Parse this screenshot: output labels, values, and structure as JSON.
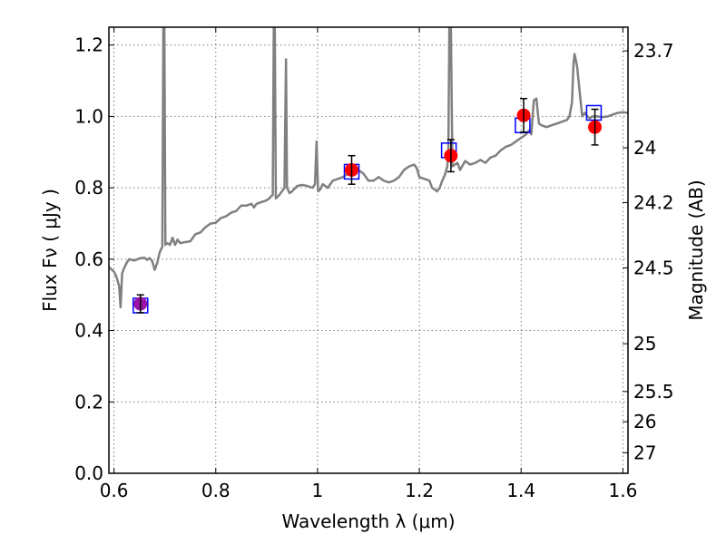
{
  "chart_data": {
    "type": "scatter",
    "xlabel": "Wavelength  λ (μm)",
    "ylabel": "Flux  Fν  ( μJy )",
    "ylabel_right": "Magnitude (AB)",
    "xlim": [
      0.59,
      1.61
    ],
    "ylim": [
      0.0,
      1.25
    ],
    "grid": true,
    "x_ticks": [
      0.6,
      0.8,
      1.0,
      1.2,
      1.4,
      1.6
    ],
    "x_tick_labels": [
      "0.6",
      "0.8",
      "1",
      "1.2",
      "1.4",
      "1.6"
    ],
    "y_ticks": [
      0.0,
      0.2,
      0.4,
      0.6,
      0.8,
      1.0,
      1.2
    ],
    "y_tick_labels": [
      "0.0",
      "0.2",
      "0.4",
      "0.6",
      "0.8",
      "1.0",
      "1.2"
    ],
    "mag_ticks": [
      {
        "flux": 1.1835,
        "label": "23.7"
      },
      {
        "flux": 0.912,
        "label": "24"
      },
      {
        "flux": 0.7586,
        "label": "24.2"
      },
      {
        "flux": 0.5754,
        "label": "24.5"
      },
      {
        "flux": 0.3631,
        "label": "25"
      },
      {
        "flux": 0.2291,
        "label": "25.5"
      },
      {
        "flux": 0.1445,
        "label": "26"
      },
      {
        "flux": 0.0575,
        "label": "27"
      }
    ],
    "colors": {
      "spectrum": "#808080",
      "observed": "#ff0000",
      "observed_first": "#9b14a8",
      "model_box": "#0000ff",
      "errorbar": "#000000",
      "grid": "#808080"
    },
    "series": [
      {
        "kind": "spectrum_line",
        "points": [
          [
            0.59,
            0.578
          ],
          [
            0.6,
            0.565
          ],
          [
            0.605,
            0.55
          ],
          [
            0.61,
            0.525
          ],
          [
            0.613,
            0.465
          ],
          [
            0.616,
            0.56
          ],
          [
            0.62,
            0.575
          ],
          [
            0.625,
            0.59
          ],
          [
            0.63,
            0.6
          ],
          [
            0.64,
            0.596
          ],
          [
            0.65,
            0.602
          ],
          [
            0.66,
            0.604
          ],
          [
            0.665,
            0.598
          ],
          [
            0.67,
            0.603
          ],
          [
            0.675,
            0.595
          ],
          [
            0.68,
            0.57
          ],
          [
            0.685,
            0.59
          ],
          [
            0.69,
            0.62
          ],
          [
            0.695,
            0.635
          ],
          [
            0.697,
            1.25
          ],
          [
            0.699,
            1.25
          ],
          [
            0.701,
            0.64
          ],
          [
            0.705,
            0.645
          ],
          [
            0.71,
            0.64
          ],
          [
            0.715,
            0.66
          ],
          [
            0.72,
            0.64
          ],
          [
            0.725,
            0.655
          ],
          [
            0.73,
            0.645
          ],
          [
            0.74,
            0.648
          ],
          [
            0.75,
            0.65
          ],
          [
            0.76,
            0.67
          ],
          [
            0.77,
            0.675
          ],
          [
            0.78,
            0.69
          ],
          [
            0.79,
            0.7
          ],
          [
            0.8,
            0.702
          ],
          [
            0.81,
            0.715
          ],
          [
            0.82,
            0.72
          ],
          [
            0.83,
            0.73
          ],
          [
            0.84,
            0.735
          ],
          [
            0.85,
            0.75
          ],
          [
            0.86,
            0.75
          ],
          [
            0.87,
            0.755
          ],
          [
            0.875,
            0.745
          ],
          [
            0.88,
            0.755
          ],
          [
            0.89,
            0.76
          ],
          [
            0.9,
            0.765
          ],
          [
            0.905,
            0.77
          ],
          [
            0.908,
            0.775
          ],
          [
            0.912,
            0.78
          ],
          [
            0.914,
            1.25
          ],
          [
            0.916,
            1.25
          ],
          [
            0.918,
            0.77
          ],
          [
            0.925,
            0.78
          ],
          [
            0.93,
            0.79
          ],
          [
            0.935,
            0.8
          ],
          [
            0.938,
            1.16
          ],
          [
            0.94,
            0.8
          ],
          [
            0.945,
            0.785
          ],
          [
            0.95,
            0.79
          ],
          [
            0.96,
            0.805
          ],
          [
            0.97,
            0.808
          ],
          [
            0.98,
            0.805
          ],
          [
            0.99,
            0.8
          ],
          [
            0.995,
            0.81
          ],
          [
            0.998,
            0.93
          ],
          [
            1.001,
            0.79
          ],
          [
            1.005,
            0.795
          ],
          [
            1.01,
            0.81
          ],
          [
            1.02,
            0.8
          ],
          [
            1.03,
            0.82
          ],
          [
            1.04,
            0.825
          ],
          [
            1.05,
            0.83
          ],
          [
            1.06,
            0.84
          ],
          [
            1.07,
            0.84
          ],
          [
            1.08,
            0.85
          ],
          [
            1.09,
            0.84
          ],
          [
            1.1,
            0.82
          ],
          [
            1.11,
            0.82
          ],
          [
            1.12,
            0.83
          ],
          [
            1.13,
            0.82
          ],
          [
            1.14,
            0.815
          ],
          [
            1.15,
            0.82
          ],
          [
            1.16,
            0.83
          ],
          [
            1.17,
            0.85
          ],
          [
            1.18,
            0.86
          ],
          [
            1.19,
            0.865
          ],
          [
            1.195,
            0.855
          ],
          [
            1.2,
            0.83
          ],
          [
            1.21,
            0.825
          ],
          [
            1.22,
            0.82
          ],
          [
            1.225,
            0.8
          ],
          [
            1.23,
            0.795
          ],
          [
            1.235,
            0.79
          ],
          [
            1.24,
            0.8
          ],
          [
            1.245,
            0.82
          ],
          [
            1.25,
            0.835
          ],
          [
            1.255,
            0.86
          ],
          [
            1.257,
            0.9
          ],
          [
            1.259,
            1.25
          ],
          [
            1.262,
            1.25
          ],
          [
            1.265,
            0.86
          ],
          [
            1.27,
            0.865
          ],
          [
            1.275,
            0.87
          ],
          [
            1.28,
            0.85
          ],
          [
            1.29,
            0.875
          ],
          [
            1.3,
            0.865
          ],
          [
            1.31,
            0.87
          ],
          [
            1.32,
            0.878
          ],
          [
            1.33,
            0.87
          ],
          [
            1.34,
            0.885
          ],
          [
            1.35,
            0.89
          ],
          [
            1.36,
            0.905
          ],
          [
            1.37,
            0.915
          ],
          [
            1.38,
            0.92
          ],
          [
            1.39,
            0.93
          ],
          [
            1.4,
            0.94
          ],
          [
            1.41,
            0.95
          ],
          [
            1.415,
            0.96
          ],
          [
            1.42,
            0.95
          ],
          [
            1.425,
            1.045
          ],
          [
            1.43,
            1.05
          ],
          [
            1.435,
            0.98
          ],
          [
            1.44,
            0.975
          ],
          [
            1.45,
            0.97
          ],
          [
            1.46,
            0.975
          ],
          [
            1.47,
            0.98
          ],
          [
            1.48,
            0.985
          ],
          [
            1.49,
            0.99
          ],
          [
            1.495,
            1.0
          ],
          [
            1.5,
            1.04
          ],
          [
            1.503,
            1.15
          ],
          [
            1.505,
            1.175
          ],
          [
            1.51,
            1.14
          ],
          [
            1.515,
            1.07
          ],
          [
            1.52,
            1.0
          ],
          [
            1.525,
            1.01
          ],
          [
            1.53,
            1.0
          ],
          [
            1.535,
            0.995
          ],
          [
            1.54,
            1.0
          ],
          [
            1.55,
            1.0
          ],
          [
            1.56,
            0.998
          ],
          [
            1.57,
            1.0
          ],
          [
            1.58,
            1.005
          ],
          [
            1.59,
            1.01
          ],
          [
            1.6,
            1.012
          ],
          [
            1.61,
            1.01
          ]
        ]
      },
      {
        "kind": "observed",
        "points": [
          {
            "x": 0.652,
            "y": 0.475,
            "yerr": 0.025
          },
          {
            "x": 1.067,
            "y": 0.85,
            "yerr": 0.04
          },
          {
            "x": 1.262,
            "y": 0.89,
            "yerr": 0.045
          },
          {
            "x": 1.405,
            "y": 1.003,
            "yerr": 0.047
          },
          {
            "x": 1.545,
            "y": 0.97,
            "yerr": 0.05
          }
        ]
      },
      {
        "kind": "model",
        "points": [
          {
            "x": 0.652,
            "y": 0.47
          },
          {
            "x": 1.067,
            "y": 0.845
          },
          {
            "x": 1.258,
            "y": 0.905
          },
          {
            "x": 1.403,
            "y": 0.975
          },
          {
            "x": 1.543,
            "y": 1.01
          }
        ]
      }
    ]
  }
}
